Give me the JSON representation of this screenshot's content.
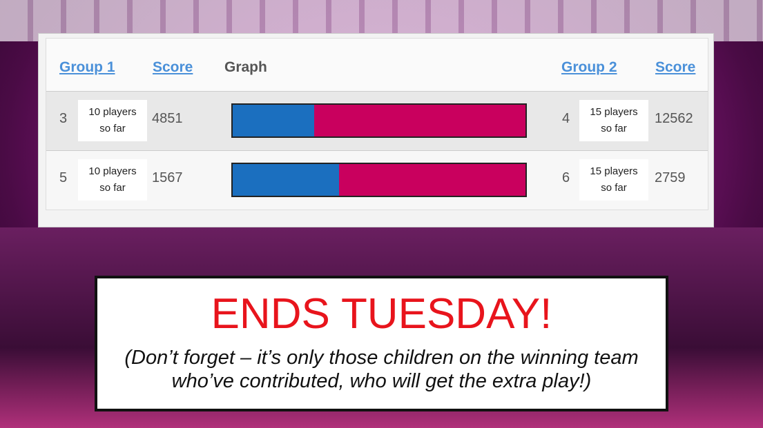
{
  "table": {
    "headers": [
      "Group 1",
      "Score",
      "Graph",
      "Group 2",
      "Score"
    ],
    "rows": [
      {
        "group1": 3,
        "group1_note": "10 players so far",
        "score1": 4851,
        "group2": 4,
        "group2_note": "15 players so far",
        "score2": 12562
      },
      {
        "group1": 5,
        "group1_note": "10 players so far",
        "score1": 1567,
        "group2": 6,
        "group2_note": "15 players so far",
        "score2": 2759
      }
    ],
    "graph_colors": [
      "#1b6fbf",
      "#c9005e"
    ]
  },
  "banner": {
    "title": "ENDS TUESDAY!",
    "note": "(Don’t forget – it’s only those children on the winning team who’ve contributed, who will get the extra play!)"
  }
}
